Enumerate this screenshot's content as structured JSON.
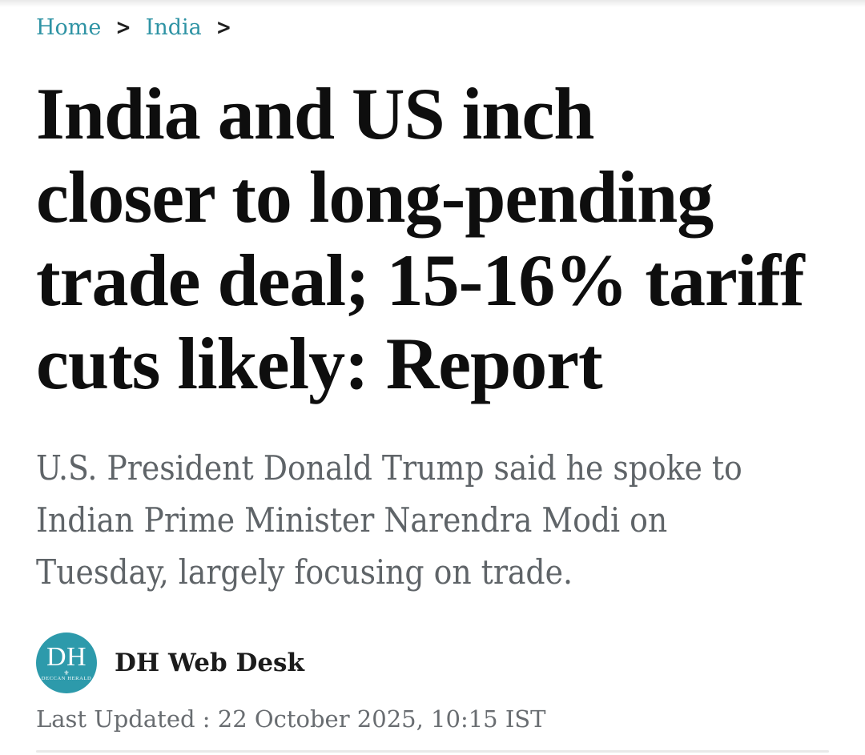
{
  "breadcrumb": {
    "separator": ">",
    "items": [
      {
        "label": "Home"
      },
      {
        "label": "India"
      }
    ]
  },
  "article": {
    "title": "India and US inch\ncloser to long-pending\ntrade deal; 15-16% tariff\ncuts likely: Report",
    "subtitle": "U.S. President Donald Trump said he spoke to\nIndian Prime Minister Narendra Modi on\nTuesday, largely focusing on trade.",
    "author": {
      "name": "DH Web Desk",
      "avatar_text": "DH",
      "avatar_subtext": "DECCAN HERALD"
    },
    "last_updated": "Last Updated : 22 October 2025, 10:15 IST"
  },
  "icons": {
    "crest": "⚜"
  },
  "colors": {
    "accent": "#2e93a4",
    "logo-teal": "#2d9aab",
    "headline": "#0e0e0e",
    "subtitle-gray": "#5f6468",
    "meta-gray": "#696d71",
    "divider": "#e9e9e9",
    "chevron": "#1f1f1f"
  }
}
